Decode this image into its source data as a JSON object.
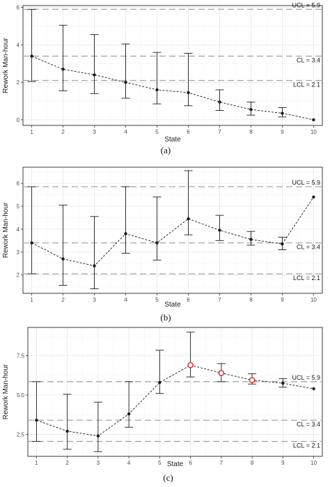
{
  "chart_data": [
    {
      "type": "line",
      "caption": "(a)",
      "xlabel": "State",
      "ylabel": "Rework Man-hour",
      "x": [
        1,
        2,
        3,
        4,
        5,
        6,
        7,
        8,
        9,
        10
      ],
      "x_ticks": [
        "1",
        "2",
        "3",
        "4",
        "5",
        "6",
        "7",
        "8",
        "9",
        "10"
      ],
      "ylim": [
        -0.3,
        6.1
      ],
      "y_ticks": [
        0,
        2,
        4,
        6
      ],
      "y_tick_labels": [
        "0",
        "2",
        "4",
        "6"
      ],
      "series": [
        {
          "values": [
            3.4,
            2.7,
            2.4,
            2.0,
            1.6,
            1.45,
            0.95,
            0.55,
            0.35,
            0.0
          ],
          "upper": [
            5.9,
            5.05,
            4.55,
            4.05,
            3.6,
            3.55,
            1.6,
            0.95,
            0.65,
            0.0
          ],
          "lower": [
            2.05,
            1.55,
            1.4,
            1.15,
            0.85,
            0.75,
            0.5,
            0.25,
            0.15,
            0.0
          ],
          "highlight": []
        }
      ],
      "control_lines": [
        {
          "label": "UCL = 5.9",
          "value": 5.9
        },
        {
          "label": "CL = 3.4",
          "value": 3.4
        },
        {
          "label": "LCL = 2.1",
          "value": 2.1
        }
      ],
      "grid": true
    },
    {
      "type": "line",
      "caption": "(b)",
      "xlabel": "State",
      "ylabel": "Rework Man-hour",
      "x": [
        1,
        2,
        3,
        4,
        5,
        6,
        7,
        8,
        9,
        10
      ],
      "x_ticks": [
        "1",
        "2",
        "3",
        "4",
        "5",
        "6",
        "7",
        "8",
        "9",
        "10"
      ],
      "ylim": [
        1.2,
        6.7
      ],
      "y_ticks": [
        2,
        3,
        4,
        5,
        6
      ],
      "y_tick_labels": [
        "2",
        "3",
        "4",
        "5",
        "6"
      ],
      "series": [
        {
          "values": [
            3.4,
            2.7,
            2.4,
            3.8,
            3.4,
            4.45,
            3.95,
            3.55,
            3.35,
            5.4
          ],
          "upper": [
            5.85,
            5.05,
            4.55,
            5.85,
            5.4,
            6.55,
            4.6,
            3.9,
            3.65,
            5.4
          ],
          "lower": [
            2.05,
            1.55,
            1.4,
            2.95,
            2.65,
            3.75,
            3.5,
            3.3,
            3.1,
            5.4
          ],
          "highlight": []
        }
      ],
      "control_lines": [
        {
          "label": "UCL = 5.9",
          "value": 5.85
        },
        {
          "label": "CL = 3.4",
          "value": 3.4
        },
        {
          "label": "LCL = 2.1",
          "value": 2.05
        }
      ],
      "grid": true
    },
    {
      "type": "line",
      "caption": "(c)",
      "xlabel": "State",
      "ylabel": "Rework Man-hour",
      "x": [
        1,
        2,
        3,
        4,
        5,
        6,
        7,
        8,
        9,
        10
      ],
      "x_ticks": [
        "1",
        "2",
        "3",
        "4",
        "5",
        "6",
        "7",
        "8",
        "9",
        "10"
      ],
      "ylim": [
        1.1,
        9.3
      ],
      "y_ticks": [
        2.5,
        5.0,
        7.5
      ],
      "y_tick_labels": [
        "2.5",
        "5.0",
        "7.5"
      ],
      "series": [
        {
          "values": [
            3.4,
            2.7,
            2.4,
            3.8,
            5.8,
            6.9,
            6.4,
            5.95,
            5.75,
            5.4
          ],
          "upper": [
            5.85,
            5.05,
            4.55,
            5.85,
            7.85,
            9.0,
            7.0,
            6.35,
            6.05,
            5.4
          ],
          "lower": [
            2.05,
            1.55,
            1.4,
            2.95,
            5.1,
            6.15,
            5.85,
            5.7,
            5.5,
            5.4
          ],
          "highlight": [
            6,
            7,
            8
          ]
        }
      ],
      "control_lines": [
        {
          "label": "UCL = 5.9",
          "value": 5.85
        },
        {
          "label": "CL = 3.4",
          "value": 3.4
        },
        {
          "label": "LCL = 2.1",
          "value": 2.05
        }
      ],
      "grid": true
    }
  ],
  "colors": {
    "highlight_point": "#d62728",
    "control_line": "#a6a6a6",
    "series": "#1a1a1a"
  }
}
